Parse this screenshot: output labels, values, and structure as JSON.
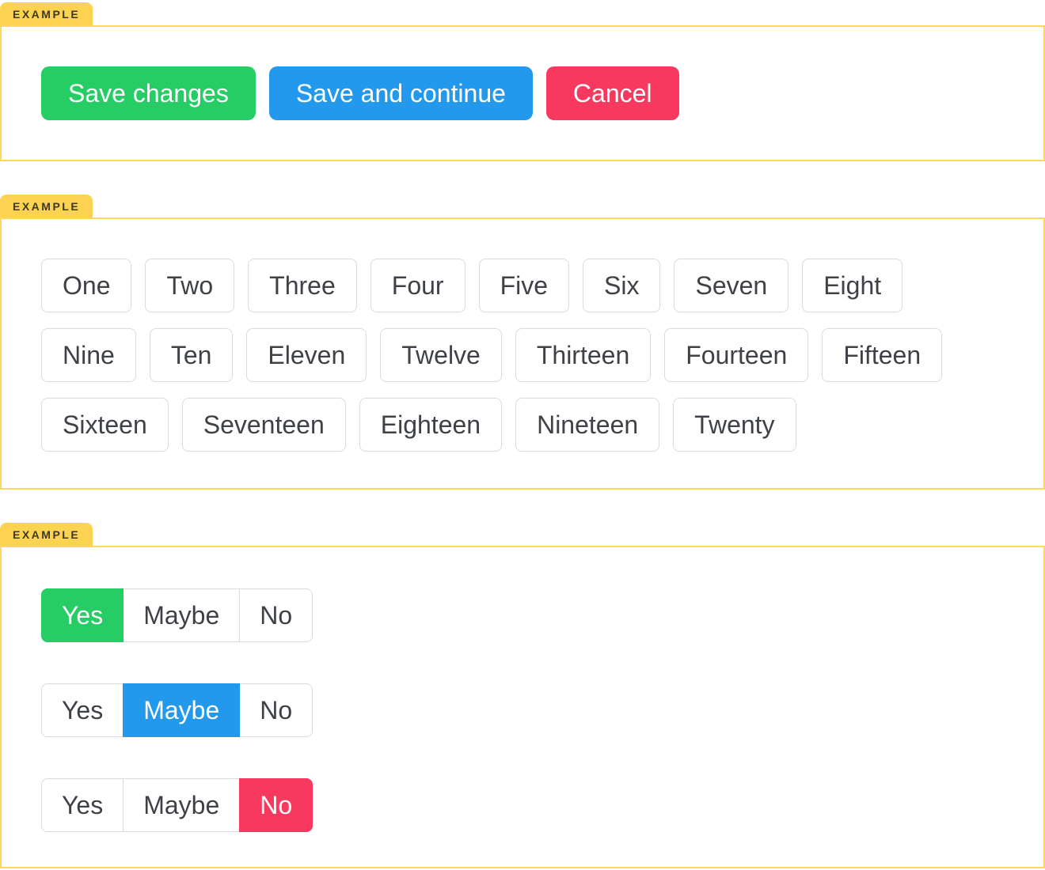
{
  "colors": {
    "green": "#26CD64",
    "blue": "#2399EE",
    "red": "#F8395F",
    "tag_bg": "#FCD350",
    "tag_text": "#3E3924",
    "box_border": "#FCD85F",
    "outline_border": "#DBDBDB",
    "button_text": "#3E4247"
  },
  "sections": [
    {
      "tag": "EXAMPLE",
      "buttons": [
        {
          "label": "Save changes",
          "color": "#26CD64"
        },
        {
          "label": "Save and continue",
          "color": "#2399EE"
        },
        {
          "label": "Cancel",
          "color": "#F8395F"
        }
      ]
    },
    {
      "tag": "EXAMPLE",
      "rows": [
        [
          "One",
          "Two",
          "Three",
          "Four",
          "Five",
          "Six",
          "Seven",
          "Eight"
        ],
        [
          "Nine",
          "Ten",
          "Eleven",
          "Twelve",
          "Thirteen",
          "Fourteen",
          "Fifteen"
        ],
        [
          "Sixteen",
          "Seventeen",
          "Eighteen",
          "Nineteen",
          "Twenty"
        ]
      ]
    },
    {
      "tag": "EXAMPLE",
      "groups": [
        {
          "options": [
            "Yes",
            "Maybe",
            "No"
          ],
          "selected": "Yes",
          "selected_index": 0,
          "selected_color": "#26CD64"
        },
        {
          "options": [
            "Yes",
            "Maybe",
            "No"
          ],
          "selected": "Maybe",
          "selected_index": 1,
          "selected_color": "#2399EE"
        },
        {
          "options": [
            "Yes",
            "Maybe",
            "No"
          ],
          "selected": "No",
          "selected_index": 2,
          "selected_color": "#F8395F"
        }
      ]
    }
  ]
}
